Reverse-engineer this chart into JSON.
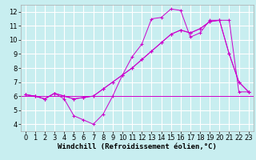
{
  "xlabel": "Windchill (Refroidissement éolien,°C)",
  "bg_color": "#c8eef0",
  "grid_color": "#ffffff",
  "line_color": "#cc00cc",
  "marker": "+",
  "xlim": [
    -0.5,
    23.5
  ],
  "ylim": [
    3.5,
    12.5
  ],
  "xticks": [
    0,
    1,
    2,
    3,
    4,
    5,
    6,
    7,
    8,
    9,
    10,
    11,
    12,
    13,
    14,
    15,
    16,
    17,
    18,
    19,
    20,
    21,
    22,
    23
  ],
  "yticks": [
    4,
    5,
    6,
    7,
    8,
    9,
    10,
    11,
    12
  ],
  "line1_x": [
    0,
    1,
    2,
    3,
    4,
    5,
    6,
    7,
    8,
    9,
    10,
    11,
    12,
    13,
    14,
    15,
    16,
    17,
    18,
    19,
    20,
    21,
    22,
    23
  ],
  "line1_y": [
    6.1,
    6.0,
    5.8,
    6.2,
    5.8,
    4.6,
    4.3,
    4.0,
    4.7,
    6.0,
    7.5,
    8.8,
    9.7,
    11.5,
    11.6,
    12.2,
    12.1,
    10.2,
    10.5,
    11.4,
    11.4,
    9.0,
    7.0,
    6.3
  ],
  "line2_x": [
    0,
    1,
    2,
    3,
    4,
    5,
    6,
    7,
    8,
    9,
    10,
    11,
    12,
    13,
    14,
    15,
    16,
    17,
    18,
    19,
    20,
    21,
    22,
    23
  ],
  "line2_y": [
    6.1,
    6.0,
    5.8,
    6.2,
    6.0,
    5.8,
    5.9,
    6.0,
    6.5,
    7.0,
    7.5,
    8.0,
    8.6,
    9.2,
    9.8,
    10.4,
    10.7,
    10.5,
    10.8,
    11.3,
    11.4,
    11.4,
    6.3,
    6.3
  ],
  "line3_x": [
    0,
    1,
    2,
    3,
    4,
    5,
    6,
    7,
    8,
    9,
    10,
    11,
    12,
    13,
    14,
    15,
    16,
    17,
    18,
    19,
    20,
    21,
    22,
    23
  ],
  "line3_y": [
    6.1,
    6.0,
    5.8,
    6.2,
    6.0,
    5.8,
    5.9,
    6.0,
    6.5,
    7.0,
    7.5,
    8.0,
    8.6,
    9.2,
    9.8,
    10.4,
    10.7,
    10.5,
    10.8,
    11.3,
    11.4,
    9.0,
    7.0,
    6.3
  ],
  "xlabel_fontsize": 6.5,
  "tick_fontsize": 6,
  "marker_size": 2.5,
  "linewidth": 0.7
}
